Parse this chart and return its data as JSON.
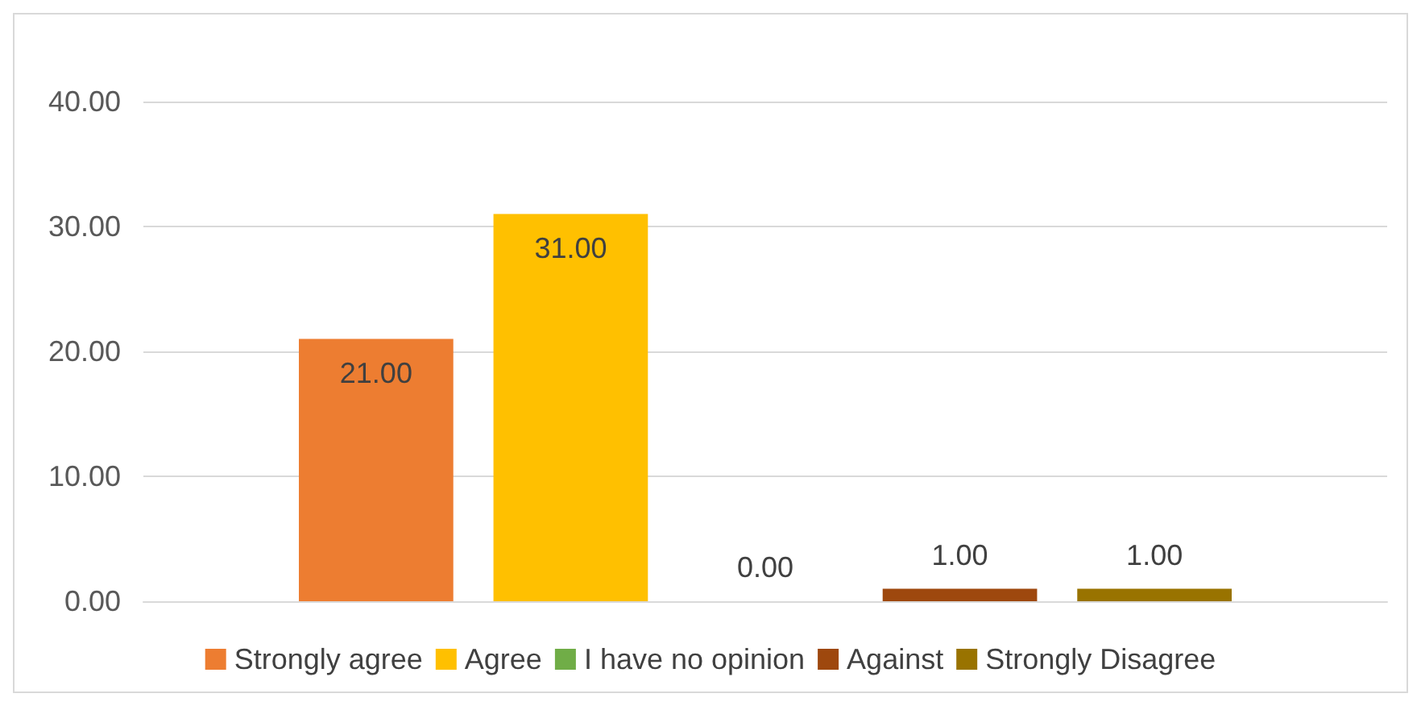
{
  "chart_data": {
    "type": "bar",
    "categories": [
      null
    ],
    "series": [
      {
        "name": "Strongly agree",
        "color": "#ed7d31",
        "values": [
          21
        ],
        "value_labels": [
          "21.00"
        ]
      },
      {
        "name": "Agree",
        "color": "#ffc000",
        "values": [
          31
        ],
        "value_labels": [
          "31.00"
        ]
      },
      {
        "name": "I have no opinion",
        "color": "#70ad47",
        "values": [
          0
        ],
        "value_labels": [
          "0.00"
        ]
      },
      {
        "name": "Against",
        "color": "#9e480e",
        "values": [
          1
        ],
        "value_labels": [
          "1.00"
        ]
      },
      {
        "name": "Strongly Disagree",
        "color": "#997300",
        "values": [
          1
        ],
        "value_labels": [
          "1.00"
        ]
      }
    ],
    "ylim": [
      0,
      40
    ],
    "yticks": [
      {
        "value": 0,
        "label": "0.00"
      },
      {
        "value": 10,
        "label": "10.00"
      },
      {
        "value": 20,
        "label": "20.00"
      },
      {
        "value": 30,
        "label": "30.00"
      },
      {
        "value": 40,
        "label": "40.00"
      }
    ],
    "grid": "y",
    "legend": "bottom"
  }
}
